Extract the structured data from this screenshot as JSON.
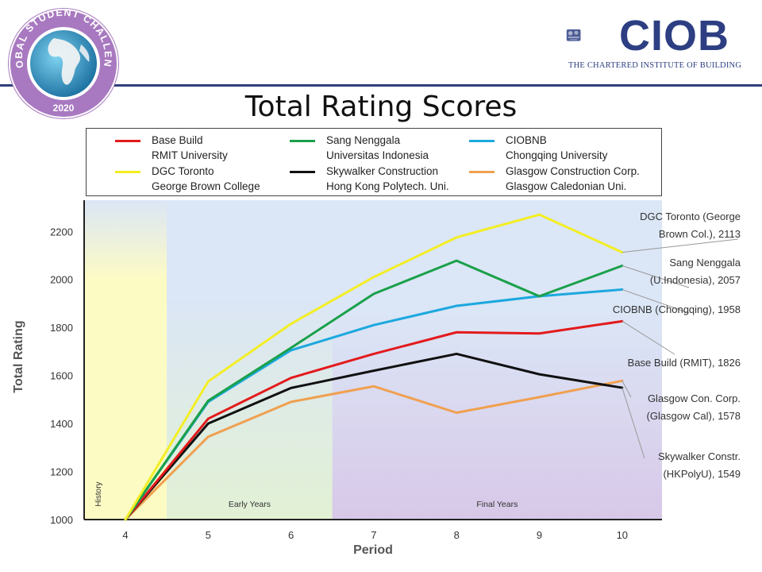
{
  "header": {
    "badge_text": "GLOBAL STUDENT CHALLENGE",
    "badge_year": "2020",
    "logo_name": "CIOB",
    "logo_subtitle": "THE CHARTERED INSTITUTE OF BUILDING"
  },
  "colors": {
    "header_rule": "#2e3f7c",
    "brand": "#2d3f82",
    "history_zone": "#fdfbc4",
    "early_zone": "#e2f1d4",
    "final_zone": "#d8c8e8",
    "plot_bg": "#dbe6f6"
  },
  "chart_data": {
    "type": "line",
    "title": "Total Rating Scores",
    "xlabel": "Period",
    "ylabel": "Total Rating",
    "x": [
      4,
      5,
      6,
      7,
      8,
      9,
      10
    ],
    "ylim": [
      1000,
      2330
    ],
    "yticks": [
      1000,
      1200,
      1400,
      1600,
      1800,
      2000,
      2200
    ],
    "grid": false,
    "legend_position": "top",
    "zones": [
      {
        "label": "History",
        "from": 3.5,
        "to": 4.5
      },
      {
        "label": "Early Years",
        "from": 4.5,
        "to": 6.5
      },
      {
        "label": "Final Years",
        "from": 6.5,
        "to": 10.5
      }
    ],
    "series": [
      {
        "key": "base",
        "name": "Base Build",
        "sub": "RMIT University",
        "color": "#e31a1c",
        "values": [
          1000,
          1420,
          1590,
          1690,
          1780,
          1775,
          1826
        ],
        "end_label": [
          "Base Build (RMIT), 1826"
        ]
      },
      {
        "key": "sang",
        "name": "Sang Nenggala",
        "sub": "Universitas Indonesia",
        "color": "#1aa04a",
        "values": [
          1000,
          1495,
          1715,
          1940,
          2078,
          1930,
          2057
        ],
        "end_label": [
          "Sang Nenggala",
          "(U.Indonesia), 2057"
        ]
      },
      {
        "key": "ciobnb",
        "name": "CIOBNB",
        "sub": "Chongqing University",
        "color": "#1ca8de",
        "values": [
          1000,
          1490,
          1705,
          1810,
          1890,
          1930,
          1958
        ],
        "end_label": [
          "CIOBNB (Chongqing), 1958"
        ]
      },
      {
        "key": "dgc",
        "name": "DGC Toronto",
        "sub": "George Brown College",
        "color": "#f3ee24",
        "values": [
          1000,
          1575,
          1815,
          2010,
          2175,
          2270,
          2113
        ],
        "end_label": [
          "DGC Toronto  (George",
          "Brown Col.), 2113"
        ]
      },
      {
        "key": "sky",
        "name": "Skywalker  Construction",
        "sub": "Hong Kong Polytech. Uni.",
        "color": "#111111",
        "values": [
          1000,
          1400,
          1548,
          1620,
          1690,
          1605,
          1549
        ],
        "end_label": [
          "Skywalker Constr.",
          "(HKPolyU), 1549"
        ]
      },
      {
        "key": "glas",
        "name": "Glasgow Construction Corp.",
        "sub": "Glasgow Caledonian Uni.",
        "color": "#f0a050",
        "values": [
          1000,
          1345,
          1490,
          1555,
          1445,
          1510,
          1578
        ],
        "end_label": [
          "Glasgow Con. Corp.",
          "(Glasgow Cal), 1578"
        ]
      }
    ]
  }
}
